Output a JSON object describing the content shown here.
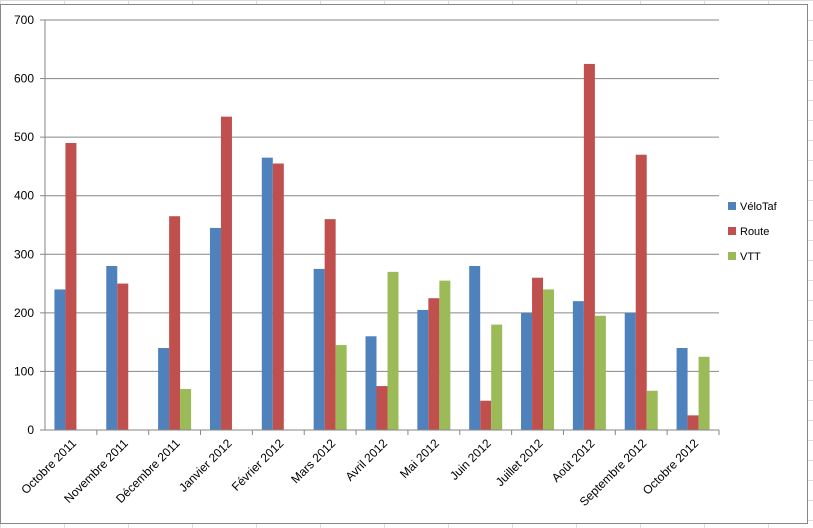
{
  "chart_data": {
    "type": "bar",
    "title": "",
    "xlabel": "",
    "ylabel": "",
    "ylim": [
      0,
      700
    ],
    "ytick_step": 100,
    "grid": true,
    "legend_position": "right",
    "categories": [
      "Octobre 2011",
      "Novembre 2011",
      "Décembre 2011",
      "Janvier 2012",
      "Février 2012",
      "Mars 2012",
      "Avril 2012",
      "Mai 2012",
      "Juin 2012",
      "Juillet 2012",
      "Août 2012",
      "Septembre 2012",
      "Octobre 2012"
    ],
    "series": [
      {
        "name": "VéloTaf",
        "color": "#4f81bd",
        "values": [
          240,
          280,
          140,
          345,
          465,
          275,
          160,
          205,
          280,
          200,
          220,
          200,
          140
        ]
      },
      {
        "name": "Route",
        "color": "#c0504d",
        "values": [
          490,
          250,
          365,
          535,
          455,
          360,
          75,
          225,
          50,
          260,
          625,
          470,
          25
        ]
      },
      {
        "name": "VTT",
        "color": "#9bbb59",
        "values": [
          0,
          0,
          70,
          0,
          0,
          145,
          270,
          255,
          180,
          240,
          195,
          67,
          125
        ]
      }
    ]
  }
}
